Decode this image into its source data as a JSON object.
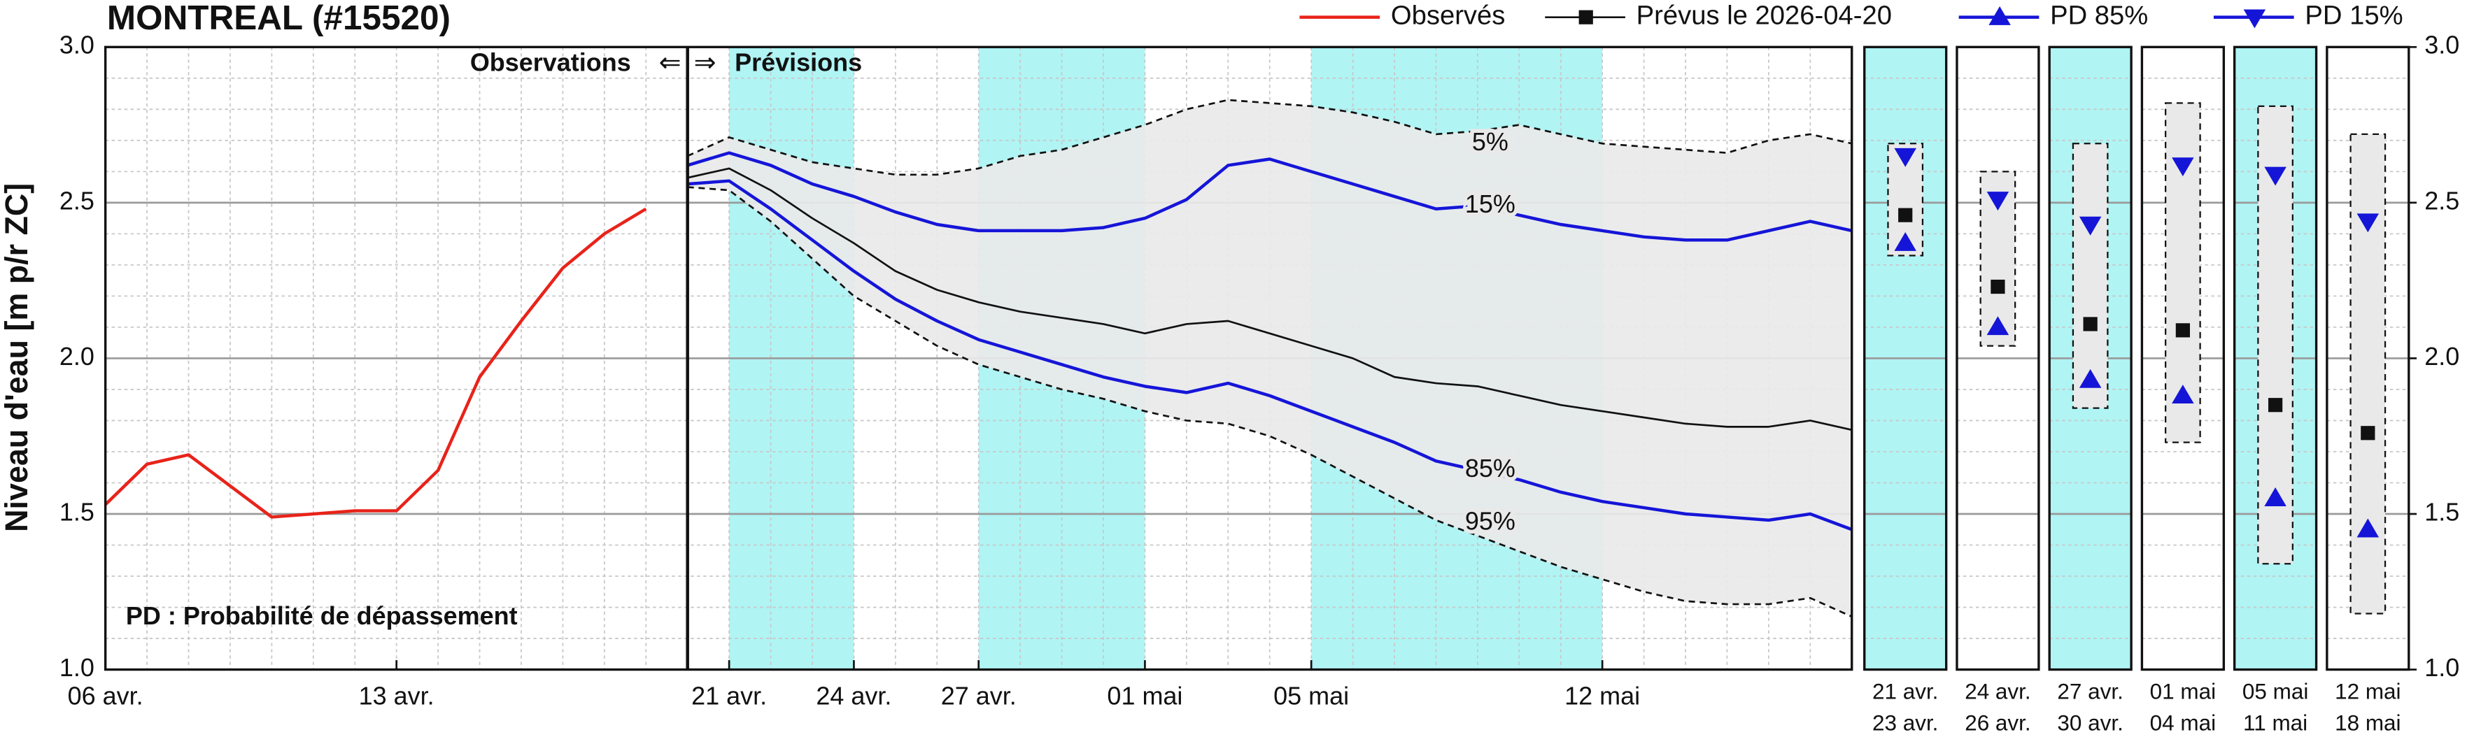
{
  "chart_data": [
    {
      "type": "line",
      "title": "MONTREAL (#15520)",
      "y_label": "Niveau d'eau [m p/r ZC]",
      "annotations": {
        "observations": "Observations",
        "arrow_left": "⇐",
        "arrow_right": "⇒",
        "forecast": "Prévisions",
        "note": "PD : Probabilité de dépassement"
      },
      "forecast_start": "2026-04-20",
      "xlim": [
        "2026-04-06",
        "2026-05-18"
      ],
      "xticks": [
        {
          "value": "2026-04-06",
          "label": "06 avr."
        },
        {
          "value": "2026-04-13",
          "label": "13 avr."
        },
        {
          "value": "2026-04-21",
          "label": "21 avr."
        },
        {
          "value": "2026-04-24",
          "label": "24 avr."
        },
        {
          "value": "2026-04-27",
          "label": "27 avr."
        },
        {
          "value": "2026-05-01",
          "label": "01 mai"
        },
        {
          "value": "2026-05-05",
          "label": "05 mai"
        },
        {
          "value": "2026-05-12",
          "label": "12 mai"
        }
      ],
      "ylim": [
        1,
        3
      ],
      "yticks": [
        {
          "value": 1,
          "label": "1.0"
        },
        {
          "value": 1.5,
          "label": "1.5"
        },
        {
          "value": 2,
          "label": "2.0"
        },
        {
          "value": 2.5,
          "label": "2.5"
        },
        {
          "value": 3,
          "label": "3.0"
        }
      ],
      "grid": true,
      "minor_grid": true,
      "shade_color": "#b0f4f4",
      "shaded_ranges": [
        [
          "2026-04-21",
          "2026-04-24"
        ],
        [
          "2026-04-27",
          "2026-05-01"
        ],
        [
          "2026-05-05",
          "2026-05-12"
        ]
      ],
      "envelope_color": "#e9e9e9",
      "x": [
        "2026-04-20",
        "2026-04-21",
        "2026-04-22",
        "2026-04-23",
        "2026-04-24",
        "2026-04-25",
        "2026-04-26",
        "2026-04-27",
        "2026-04-28",
        "2026-04-29",
        "2026-04-30",
        "2026-05-01",
        "2026-05-02",
        "2026-05-03",
        "2026-05-04",
        "2026-05-05",
        "2026-05-06",
        "2026-05-07",
        "2026-05-08",
        "2026-05-09",
        "2026-05-10",
        "2026-05-11",
        "2026-05-12",
        "2026-05-13",
        "2026-05-14",
        "2026-05-15",
        "2026-05-16",
        "2026-05-17",
        "2026-05-18"
      ],
      "series": [
        {
          "name": "Observés",
          "color": "#e8231a",
          "style": "solid",
          "x": [
            "2026-04-06",
            "2026-04-07",
            "2026-04-08",
            "2026-04-09",
            "2026-04-10",
            "2026-04-11",
            "2026-04-12",
            "2026-04-13",
            "2026-04-14",
            "2026-04-15",
            "2026-04-16",
            "2026-04-17",
            "2026-04-18",
            "2026-04-19"
          ],
          "values": [
            1.53,
            1.66,
            1.69,
            1.59,
            1.49,
            1.5,
            1.51,
            1.51,
            1.64,
            1.94,
            2.12,
            2.29,
            2.4,
            2.48
          ]
        },
        {
          "label": "5%",
          "color": "#111111",
          "style": "dashed",
          "values": [
            2.65,
            2.71,
            2.67,
            2.63,
            2.61,
            2.59,
            2.59,
            2.61,
            2.65,
            2.67,
            2.71,
            2.75,
            2.8,
            2.83,
            2.82,
            2.81,
            2.79,
            2.76,
            2.72,
            2.73,
            2.75,
            2.72,
            2.69,
            2.68,
            2.67,
            2.66,
            2.7,
            2.72,
            2.69
          ]
        },
        {
          "name": "PD 15%",
          "label": "15%",
          "color": "#1515d8",
          "style": "solid",
          "marker": "triangle-down",
          "values": [
            2.62,
            2.66,
            2.62,
            2.56,
            2.52,
            2.47,
            2.43,
            2.41,
            2.41,
            2.41,
            2.42,
            2.45,
            2.51,
            2.62,
            2.64,
            2.6,
            2.56,
            2.52,
            2.48,
            2.49,
            2.46,
            2.43,
            2.41,
            2.39,
            2.38,
            2.38,
            2.41,
            2.44,
            2.41
          ]
        },
        {
          "name": "Prévus le 2026-04-20",
          "color": "#111111",
          "style": "thin",
          "marker": "square",
          "values": [
            2.58,
            2.61,
            2.54,
            2.45,
            2.37,
            2.28,
            2.22,
            2.18,
            2.15,
            2.13,
            2.11,
            2.08,
            2.11,
            2.12,
            2.08,
            2.04,
            2.0,
            1.94,
            1.92,
            1.91,
            1.88,
            1.85,
            1.83,
            1.81,
            1.79,
            1.78,
            1.78,
            1.8,
            1.77
          ]
        },
        {
          "name": "PD 85%",
          "label": "85%",
          "color": "#1515d8",
          "style": "solid",
          "marker": "triangle-up",
          "values": [
            2.56,
            2.57,
            2.48,
            2.38,
            2.28,
            2.19,
            2.12,
            2.06,
            2.02,
            1.98,
            1.94,
            1.91,
            1.89,
            1.92,
            1.88,
            1.83,
            1.78,
            1.73,
            1.67,
            1.64,
            1.61,
            1.57,
            1.54,
            1.52,
            1.5,
            1.49,
            1.48,
            1.5,
            1.45
          ]
        },
        {
          "label": "95%",
          "color": "#111111",
          "style": "dashed",
          "values": [
            2.55,
            2.54,
            2.44,
            2.32,
            2.2,
            2.12,
            2.04,
            1.98,
            1.94,
            1.9,
            1.87,
            1.83,
            1.8,
            1.79,
            1.75,
            1.69,
            1.62,
            1.55,
            1.48,
            1.43,
            1.38,
            1.33,
            1.29,
            1.25,
            1.22,
            1.21,
            1.21,
            1.23,
            1.17
          ]
        }
      ]
    },
    {
      "type": "range",
      "ylim": [
        1,
        3
      ],
      "yticks": [
        {
          "value": 1,
          "label": "1.0"
        },
        {
          "value": 1.5,
          "label": "1.5"
        },
        {
          "value": 2,
          "label": "2.0"
        },
        {
          "value": 2.5,
          "label": "2.5"
        },
        {
          "value": 3,
          "label": "3.0"
        }
      ],
      "shade_color": "#b0f4f4",
      "periods": [
        {
          "start": "21 avr.",
          "end": "23 avr.",
          "shaded": true,
          "max": 2.69,
          "min": 2.33,
          "p15": 2.65,
          "median": 2.46,
          "p85": 2.37
        },
        {
          "start": "24 avr.",
          "end": "26 avr.",
          "shaded": false,
          "max": 2.6,
          "min": 2.04,
          "p15": 2.51,
          "median": 2.23,
          "p85": 2.1
        },
        {
          "start": "27 avr.",
          "end": "30 avr.",
          "shaded": true,
          "max": 2.69,
          "min": 1.84,
          "p15": 2.43,
          "median": 2.11,
          "p85": 1.93
        },
        {
          "start": "01 mai",
          "end": "04 mai",
          "shaded": false,
          "max": 2.82,
          "min": 1.73,
          "p15": 2.62,
          "median": 2.09,
          "p85": 1.88
        },
        {
          "start": "05 mai",
          "end": "11 mai",
          "shaded": true,
          "max": 2.81,
          "min": 1.34,
          "p15": 2.59,
          "median": 1.85,
          "p85": 1.55
        },
        {
          "start": "12 mai",
          "end": "18 mai",
          "shaded": false,
          "max": 2.72,
          "min": 1.18,
          "p15": 2.44,
          "median": 1.76,
          "p85": 1.45
        }
      ]
    }
  ]
}
